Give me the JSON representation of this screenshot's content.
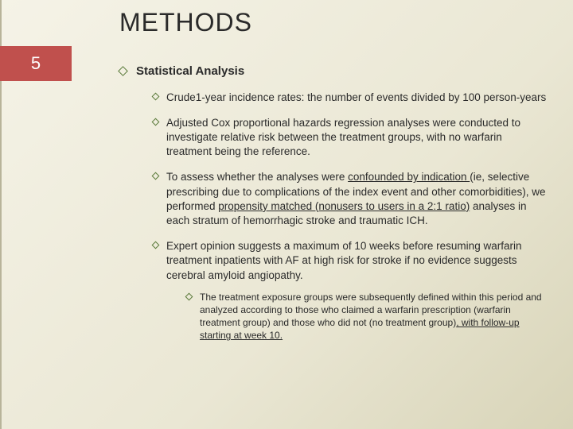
{
  "page_number": "5",
  "title": "METHODS",
  "colors": {
    "page_number_bg": "#c0504d",
    "page_number_text": "#ffffff",
    "bullet_border": "#5a7a3a",
    "text": "#2a2a2a"
  },
  "heading": "Statistical Analysis",
  "bullets": {
    "b1": "Crude1-year incidence rates: the number of events divided by 100 person-years",
    "b2": "Adjusted Cox proportional hazards regression analyses were conducted to investigate relative risk between the treatment groups, with no warfarin treatment being the reference.",
    "b3_pre": "To assess whether the analyses were ",
    "b3_u1": "confounded by indication ",
    "b3_mid": "(ie, selective prescribing due to complications of the index event and other comorbidities), we performed ",
    "b3_u2": "propensity matched (nonusers to users in a 2:1 ratio)",
    "b3_post": " analyses in each stratum of hemorrhagic stroke and traumatic ICH.",
    "b4": "Expert opinion suggests a maximum of 10 weeks before resuming warfarin treatment inpatients with AF at high risk for stroke if no evidence suggests cerebral amyloid angiopathy.",
    "b4a_pre": "The treatment exposure groups were subsequently defined within this period and analyzed according to those who claimed a warfarin prescription (warfarin treatment group) and those who did not (no treatment group)",
    "b4a_u": ", with follow-up starting at week 10."
  }
}
